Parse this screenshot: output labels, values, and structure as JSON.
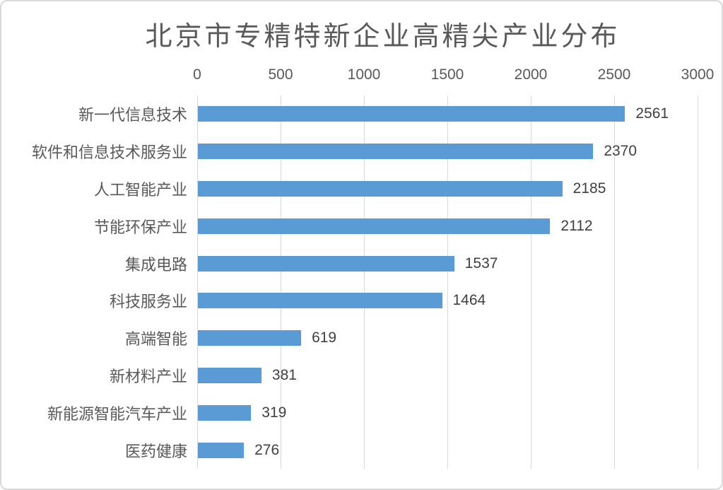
{
  "chart_data": {
    "type": "bar",
    "orientation": "horizontal",
    "title": "北京市专精特新企业高精尖产业分布",
    "categories": [
      "新一代信息技术",
      "软件和信息技术服务业",
      "人工智能产业",
      "节能环保产业",
      "集成电路",
      "科技服务业",
      "高端智能",
      "新材料产业",
      "新能源智能汽车产业",
      "医药健康"
    ],
    "values": [
      2561,
      2370,
      2185,
      2112,
      1537,
      1464,
      619,
      381,
      319,
      276
    ],
    "xlabel": "",
    "ylabel": "",
    "xlim": [
      0,
      3000
    ],
    "xticks": [
      0,
      500,
      1000,
      1500,
      2000,
      2500,
      3000
    ],
    "x_axis_position": "top",
    "grid": "vertical-major",
    "legend": "none",
    "data_labels": "outside-end"
  },
  "colors": {
    "bar": "#5B9BD5",
    "gridline": "#D9D9D9",
    "title_text": "#595959",
    "axis_text": "#595959",
    "value_text": "#404040",
    "border": "#D9D9D9",
    "background": "#FFFFFF"
  }
}
